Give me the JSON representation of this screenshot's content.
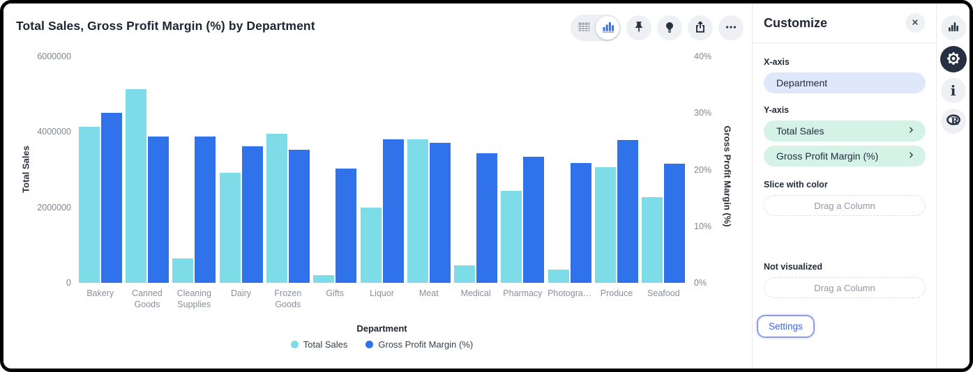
{
  "header": {
    "title": "Total Sales, Gross Profit Margin (%) by Department",
    "toolbar": {
      "selected_view": "chart-view",
      "icons": [
        "table-icon",
        "bar-chart-icon",
        "pin-icon",
        "lightbulb-icon",
        "share-icon",
        "ellipsis-icon"
      ]
    }
  },
  "chart_data": {
    "type": "bar",
    "title": "Total Sales, Gross Profit Margin (%) by Department",
    "categories": [
      "Bakery",
      "Canned Goods",
      "Cleaning Supplies",
      "Dairy",
      "Frozen Goods",
      "Gifts",
      "Liquor",
      "Meat",
      "Medical",
      "Pharmacy",
      "Photogra…",
      "Produce",
      "Seafood"
    ],
    "series": [
      {
        "name": "Total Sales",
        "axis": "left",
        "color": "#7EDCE8",
        "values": [
          4140000,
          5130000,
          650000,
          2910000,
          3960000,
          210000,
          2000000,
          3800000,
          470000,
          2430000,
          360000,
          3070000,
          2280000
        ]
      },
      {
        "name": "Gross Profit Margin (%)",
        "axis": "right",
        "color": "#2F72EA",
        "values": [
          30,
          25.8,
          25.8,
          24.1,
          23.5,
          20.2,
          25.3,
          24.8,
          22.9,
          22.3,
          21.2,
          25.2,
          21.1
        ]
      }
    ],
    "left_axis": {
      "label": "Total Sales",
      "max": 6000000,
      "ticks": [
        {
          "label": "0",
          "value": 0
        },
        {
          "label": "2000000",
          "value": 2000000
        },
        {
          "label": "4000000",
          "value": 4000000
        },
        {
          "label": "6000000",
          "value": 6000000
        }
      ]
    },
    "right_axis": {
      "label": "Gross Profit Margin (%)",
      "max": 40,
      "ticks": [
        {
          "label": "0%",
          "value": 0
        },
        {
          "label": "10%",
          "value": 10
        },
        {
          "label": "20%",
          "value": 20
        },
        {
          "label": "30%",
          "value": 30
        },
        {
          "label": "40%",
          "value": 40
        }
      ]
    },
    "xlabel": "Department",
    "legend_position": "bottom",
    "grid": false,
    "legend": [
      {
        "label": "Total Sales",
        "color": "#7EDCE8"
      },
      {
        "label": "Gross Profit Margin (%)",
        "color": "#2F72EA"
      }
    ]
  },
  "panel": {
    "title": "Customize",
    "x_axis": {
      "label": "X-axis",
      "field": "Department"
    },
    "y_axis": {
      "label": "Y-axis",
      "fields": [
        "Total Sales",
        "Gross Profit Margin (%)"
      ]
    },
    "slice": {
      "label": "Slice with color",
      "placeholder": "Drag a Column"
    },
    "not_visualized": {
      "label": "Not visualized",
      "placeholder": "Drag a Column"
    },
    "settings_label": "Settings"
  },
  "rail": {
    "icons": [
      "bar-chart-icon",
      "gear-icon",
      "info-icon",
      "r-logo-icon"
    ],
    "selected": "gear-icon"
  },
  "colors": {
    "series_total_sales": "#7EDCE8",
    "series_gross_profit_margin": "#2F72EA",
    "pill_x_axis_bg": "#DFE8FB",
    "pill_y_axis_bg": "#D5F2E6",
    "accent_link": "#3D66E0",
    "icon_dark": "#273040",
    "toolbar_circle_bg": "#EEF0F3"
  }
}
